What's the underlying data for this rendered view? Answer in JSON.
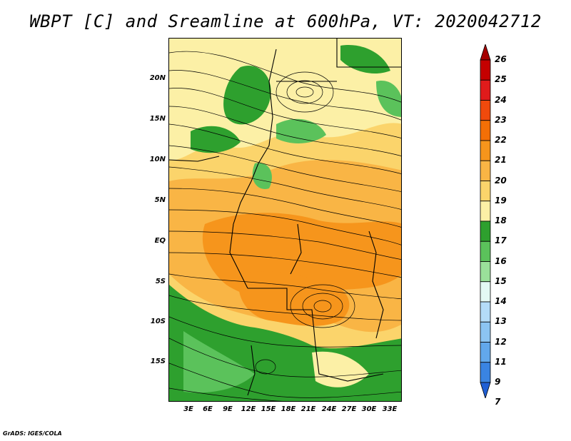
{
  "title": "WBPT [C] and Sreamline at 600hPa, VT: 2020042712",
  "footer": "GrADS: IGES/COLA",
  "lat_labels": [
    "20N",
    "15N",
    "10N",
    "5N",
    "EQ",
    "5S",
    "10S",
    "15S"
  ],
  "lon_labels": [
    "3E",
    "6E",
    "9E",
    "12E",
    "15E",
    "18E",
    "21E",
    "24E",
    "27E",
    "30E",
    "33E"
  ],
  "colorbar": {
    "labels": [
      "26",
      "25",
      "24",
      "23",
      "22",
      "21",
      "20",
      "19",
      "18",
      "17",
      "16",
      "15",
      "14",
      "13",
      "12",
      "11",
      "9",
      "7"
    ],
    "colors": [
      "#a50000",
      "#c40000",
      "#e01b1b",
      "#f04a0c",
      "#f36f06",
      "#f6951c",
      "#f9b545",
      "#fbd46b",
      "#fcf0a6",
      "#2ea02e",
      "#5bc25b",
      "#9ae09a",
      "#e4f9f4",
      "#b4dcf8",
      "#8cc4f2",
      "#62a8ec",
      "#3a84e2",
      "#1f5fd4"
    ]
  },
  "map_colors": {
    "orange_dark": "#f6951c",
    "orange": "#f9b545",
    "yellow": "#fcf0a6",
    "green": "#2ea02e",
    "green_light": "#5bc25b"
  }
}
